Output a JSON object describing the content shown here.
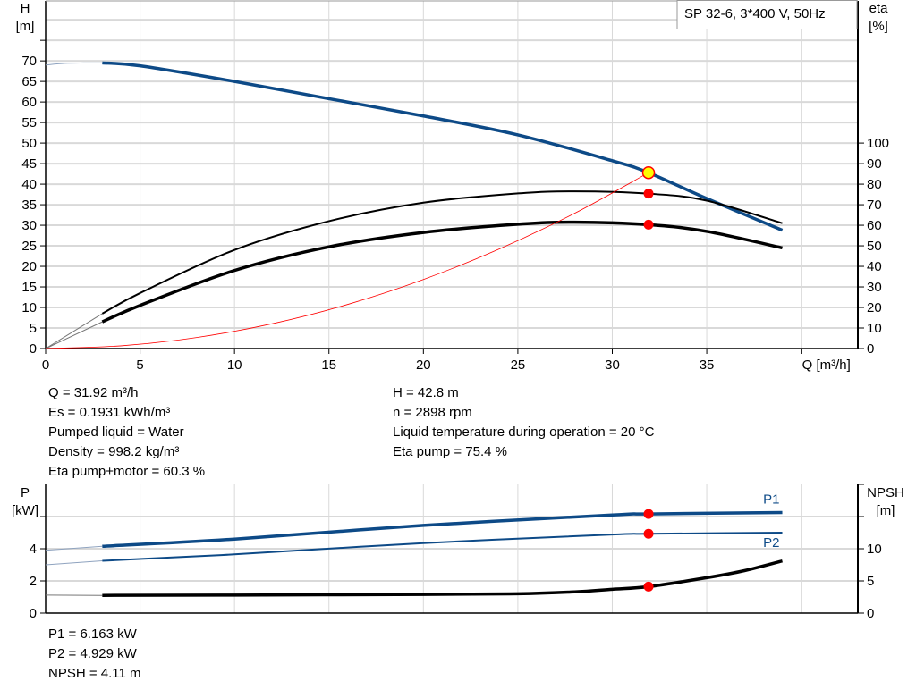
{
  "chart_data": [
    {
      "type": "line",
      "title": "SP 32-6, 3*400 V, 50Hz",
      "xlabel": "Q [m³/h]",
      "ylabel_left": [
        "H",
        "[m]"
      ],
      "ylabel_right": [
        "eta",
        "[%]"
      ],
      "xlim": [
        0,
        43
      ],
      "ylim_left": [
        0,
        84.6
      ],
      "ylim_right": [
        0,
        169.2
      ],
      "x_ticks": [
        0,
        5,
        10,
        15,
        20,
        25,
        30,
        35
      ],
      "y_left_ticks": [
        0,
        5,
        10,
        15,
        20,
        25,
        30,
        35,
        40,
        45,
        50,
        55,
        60,
        65,
        70
      ],
      "y_right_ticks": [
        0,
        10,
        20,
        30,
        40,
        50,
        60,
        70,
        80,
        90,
        100
      ],
      "grid": true,
      "series": [
        {
          "key": "H",
          "axis": "left",
          "color": "#0d4a87",
          "x": [
            3,
            5,
            10,
            15,
            20,
            25,
            30,
            31.92,
            35,
            39
          ],
          "y": [
            69.5,
            68.8,
            65,
            60.8,
            56.6,
            52,
            45.7,
            42.8,
            36.5,
            28.8
          ],
          "extension_x": [
            0,
            1,
            2,
            3
          ],
          "extension_y": [
            69,
            69.4,
            69.5,
            69.5
          ]
        },
        {
          "key": "eta_pump",
          "axis": "right",
          "color": "#000000",
          "x": [
            3,
            5,
            10,
            15,
            20,
            25,
            28,
            31.92,
            35,
            39
          ],
          "y": [
            17,
            27,
            48,
            62,
            71,
            75.5,
            76.5,
            75.4,
            72,
            61
          ],
          "extension_x": [
            0,
            3
          ],
          "extension_y": [
            0,
            17
          ]
        },
        {
          "key": "eta_pump_motor",
          "axis": "right",
          "color": "#000000",
          "x": [
            3,
            5,
            10,
            15,
            20,
            25,
            28,
            31.92,
            35,
            39
          ],
          "y": [
            13,
            21,
            38,
            49.5,
            56.5,
            60.5,
            61.5,
            60.3,
            57,
            49
          ],
          "extension_x": [
            0,
            3
          ],
          "extension_y": [
            0,
            13
          ]
        },
        {
          "key": "system_curve",
          "axis": "left",
          "color": "#ff0000",
          "x": [
            0,
            4,
            8,
            12,
            16,
            20,
            24,
            28,
            31.92
          ],
          "y": [
            0,
            0.67,
            2.69,
            6.05,
            10.75,
            16.8,
            24.2,
            32.9,
            42.8
          ]
        }
      ],
      "duty_point": {
        "Q": 31.92,
        "H": 42.8,
        "eta_pump": 75.4,
        "eta_pump_motor": 60.3
      }
    },
    {
      "type": "line",
      "xlim": [
        0,
        43
      ],
      "ylabel_left": [
        "P",
        "[kW]"
      ],
      "ylabel_right": [
        "NPSH",
        "[m]"
      ],
      "ylim_left": [
        0,
        8
      ],
      "ylim_right": [
        0,
        20
      ],
      "y_left_ticks": [
        0,
        2,
        4
      ],
      "y_right_ticks": [
        0,
        5,
        10
      ],
      "grid": true,
      "series": [
        {
          "name": "P1",
          "axis": "left",
          "color": "#0d4a87",
          "x": [
            3,
            10,
            20,
            30,
            31.92,
            39
          ],
          "y": [
            4.15,
            4.6,
            5.45,
            6.1,
            6.163,
            6.25
          ],
          "extension_x": [
            0,
            3
          ],
          "extension_y": [
            3.9,
            4.15
          ]
        },
        {
          "name": "P2",
          "axis": "left",
          "color": "#0d4a87",
          "x": [
            3,
            10,
            20,
            30,
            31.92,
            39
          ],
          "y": [
            3.25,
            3.65,
            4.35,
            4.88,
            4.929,
            5.0
          ],
          "extension_x": [
            0,
            3
          ],
          "extension_y": [
            3.0,
            3.25
          ]
        },
        {
          "key": "NPSH",
          "axis": "right",
          "color": "#000000",
          "x": [
            3,
            10,
            20,
            25,
            28,
            30,
            31.92,
            35,
            37,
            39
          ],
          "y": [
            2.75,
            2.8,
            2.9,
            3.0,
            3.3,
            3.7,
            4.11,
            5.5,
            6.6,
            8.1
          ],
          "extension_x": [
            0,
            3
          ],
          "extension_y": [
            2.8,
            2.75
          ]
        }
      ],
      "duty_point": {
        "Q": 31.92,
        "P1": 6.163,
        "P2": 4.929,
        "NPSH": 4.11
      }
    }
  ],
  "info_main": {
    "left": [
      "Q = 31.92 m³/h",
      "Es = 0.1931 kWh/m³",
      "Pumped liquid = Water",
      "Density = 998.2 kg/m³",
      "Eta pump+motor = 60.3 %"
    ],
    "right": [
      "H = 42.8 m",
      "n = 2898 rpm",
      "Liquid temperature during operation = 20 °C",
      "Eta pump = 75.4 %"
    ]
  },
  "info_power": [
    "P1 = 6.163 kW",
    "P2 = 4.929 kW",
    "NPSH = 4.11 m"
  ],
  "colors": {
    "curve_blue": "#0d4a87",
    "duty_marker": "#ff0000",
    "operating_point": "#ffff00",
    "grid": "#d9d9d9"
  }
}
